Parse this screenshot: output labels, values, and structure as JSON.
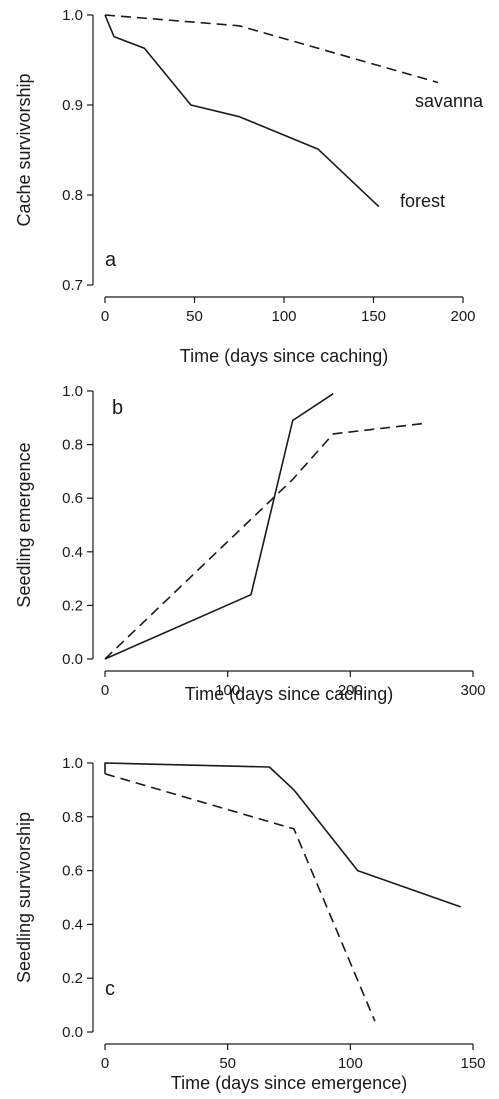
{
  "chart_data": [
    {
      "type": "line",
      "panel_label": "a",
      "xlabel": "Time (days since caching)",
      "ylabel": "Cache survivorship",
      "xlim": [
        0,
        200
      ],
      "ylim": [
        0.7,
        1.0
      ],
      "x_ticks": [
        "0",
        "50",
        "100",
        "150",
        "200"
      ],
      "y_ticks": [
        "0.7",
        "0.8",
        "0.9",
        "1.0"
      ],
      "series": [
        {
          "name": "savanna",
          "style": "dashed",
          "x": [
            0,
            75,
            186
          ],
          "y": [
            1.0,
            0.988,
            0.925
          ]
        },
        {
          "name": "forest",
          "style": "solid",
          "x": [
            0,
            5,
            22,
            48,
            75,
            119,
            153
          ],
          "y": [
            1.0,
            0.976,
            0.963,
            0.9,
            0.887,
            0.851,
            0.787
          ]
        }
      ]
    },
    {
      "type": "line",
      "panel_label": "b",
      "xlabel": "Time (days since caching)",
      "ylabel": "Seedling emergence",
      "xlim": [
        0,
        300
      ],
      "ylim": [
        0.0,
        1.0
      ],
      "x_ticks": [
        "0",
        "100",
        "200",
        "300"
      ],
      "y_ticks": [
        "0.0",
        "0.2",
        "0.4",
        "0.6",
        "0.8",
        "1.0"
      ],
      "series": [
        {
          "style": "solid",
          "x": [
            0,
            119,
            153,
            186
          ],
          "y": [
            0.0,
            0.24,
            0.89,
            0.99
          ]
        },
        {
          "style": "dashed",
          "x": [
            0,
            153,
            186,
            262
          ],
          "y": [
            0.0,
            0.67,
            0.84,
            0.88
          ]
        }
      ]
    },
    {
      "type": "line",
      "panel_label": "c",
      "xlabel": "Time (days since emergence)",
      "ylabel": "Seedling survivorship",
      "xlim": [
        0,
        150
      ],
      "ylim": [
        0.0,
        1.0
      ],
      "x_ticks": [
        "0",
        "50",
        "100",
        "150"
      ],
      "y_ticks": [
        "0.0",
        "0.2",
        "0.4",
        "0.6",
        "0.8",
        "1.0"
      ],
      "series": [
        {
          "style": "solid",
          "x": [
            0,
            0,
            67,
            77,
            103,
            145
          ],
          "y": [
            0.96,
            1.0,
            0.985,
            0.9,
            0.6,
            0.465
          ]
        },
        {
          "style": "dashed",
          "x": [
            0,
            77,
            110
          ],
          "y": [
            0.96,
            0.755,
            0.04
          ]
        }
      ]
    }
  ]
}
